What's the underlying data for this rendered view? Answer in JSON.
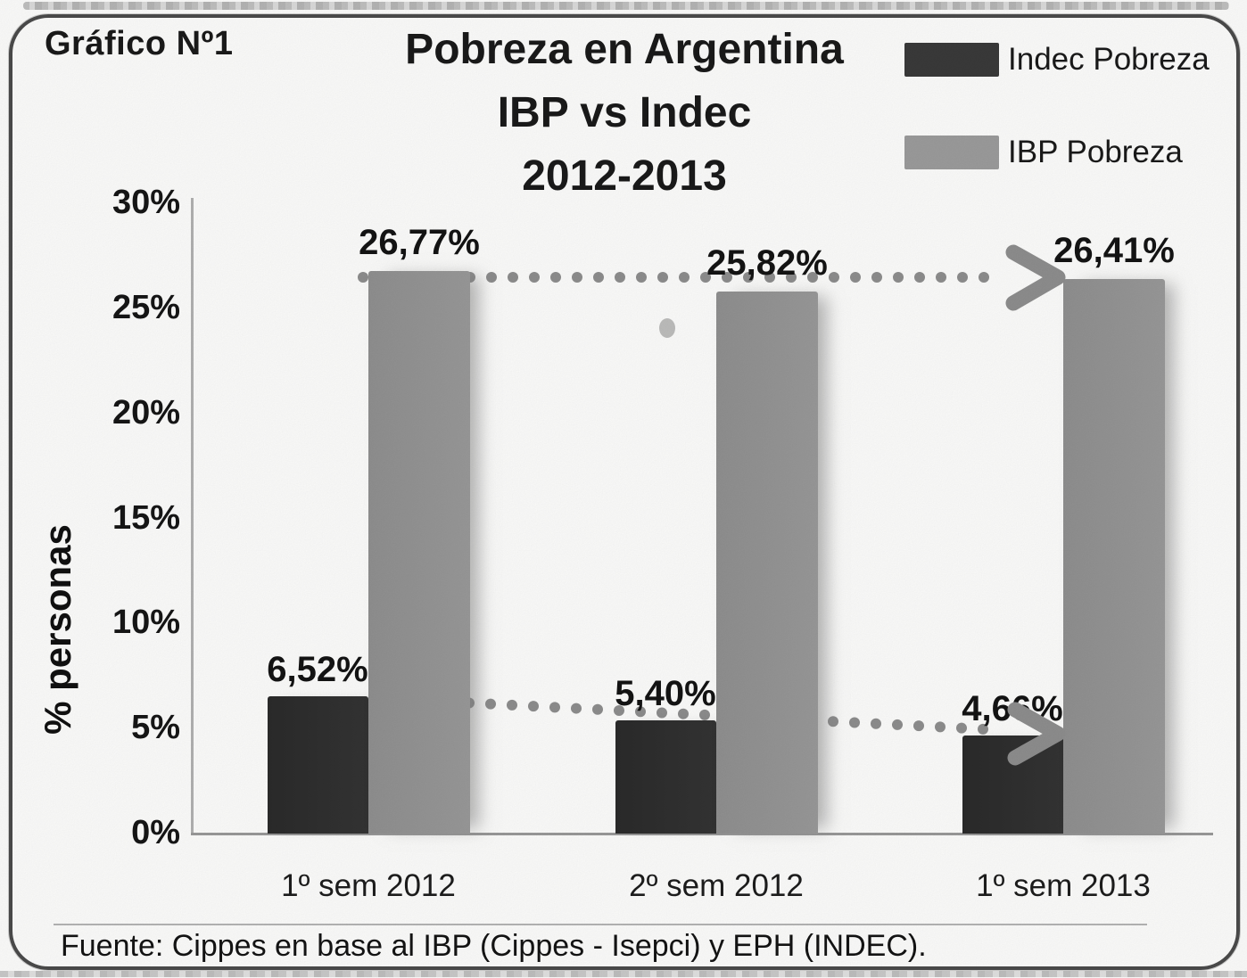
{
  "figure_label": "Gráfico Nº1",
  "title": {
    "line1": "Pobreza en Argentina",
    "line2": "IBP vs Indec",
    "line3": "2012-2013"
  },
  "legend": [
    {
      "label": "Indec Pobreza",
      "color": "#3a3a3a"
    },
    {
      "label": "IBP Pobreza",
      "color": "#9c9c9c"
    }
  ],
  "source": "Fuente: Cippes en base al IBP (Cippes - Isepci) y EPH (INDEC).",
  "chart_data": {
    "type": "bar",
    "title": "Pobreza en Argentina IBP vs Indec 2012-2013",
    "categories": [
      "1º sem 2012",
      "2º sem 2012",
      "1º sem 2013"
    ],
    "series": [
      {
        "name": "Indec Pobreza",
        "values": [
          6.52,
          5.4,
          4.66
        ],
        "labels": [
          "6,52%",
          "5,40%",
          "4,66%"
        ],
        "color": "#2b2b2b"
      },
      {
        "name": "IBP Pobreza",
        "values": [
          26.77,
          25.82,
          26.41
        ],
        "labels": [
          "26,77%",
          "25,82%",
          "26,41%"
        ],
        "color": "#909090"
      }
    ],
    "xlabel": "",
    "ylabel": "% personas",
    "ylim": [
      0,
      30
    ],
    "yticks": [
      0,
      5,
      10,
      15,
      20,
      25,
      30
    ],
    "ytick_suffix": "%",
    "grid": false,
    "legend_position": "top-right",
    "annotations": [
      "dotted gray arrow from top of IBP bar 1º sem 2012 pointing right to IBP bar 1º sem 2013",
      "dotted gray declining arrow from top of Indec bar 1º sem 2012 pointing right-down to Indec bar 1º sem 2013"
    ]
  }
}
